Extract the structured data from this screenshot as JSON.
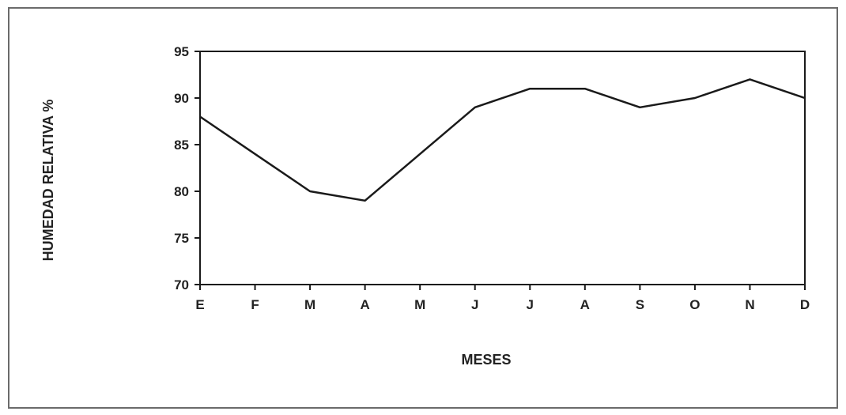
{
  "chart_data": {
    "type": "line",
    "categories": [
      "E",
      "F",
      "M",
      "A",
      "M",
      "J",
      "J",
      "A",
      "S",
      "O",
      "N",
      "D"
    ],
    "values": [
      88,
      84,
      80,
      79,
      84,
      89,
      91,
      91,
      89,
      90,
      92,
      90
    ],
    "xlabel": "MESES",
    "ylabel": "HUMEDAD  RELATIVA %",
    "ylim": [
      70,
      95
    ],
    "yticks": [
      "70",
      "75",
      "80",
      "85",
      "90",
      "95"
    ],
    "grid": false,
    "line_color": "#1a1a1a"
  }
}
